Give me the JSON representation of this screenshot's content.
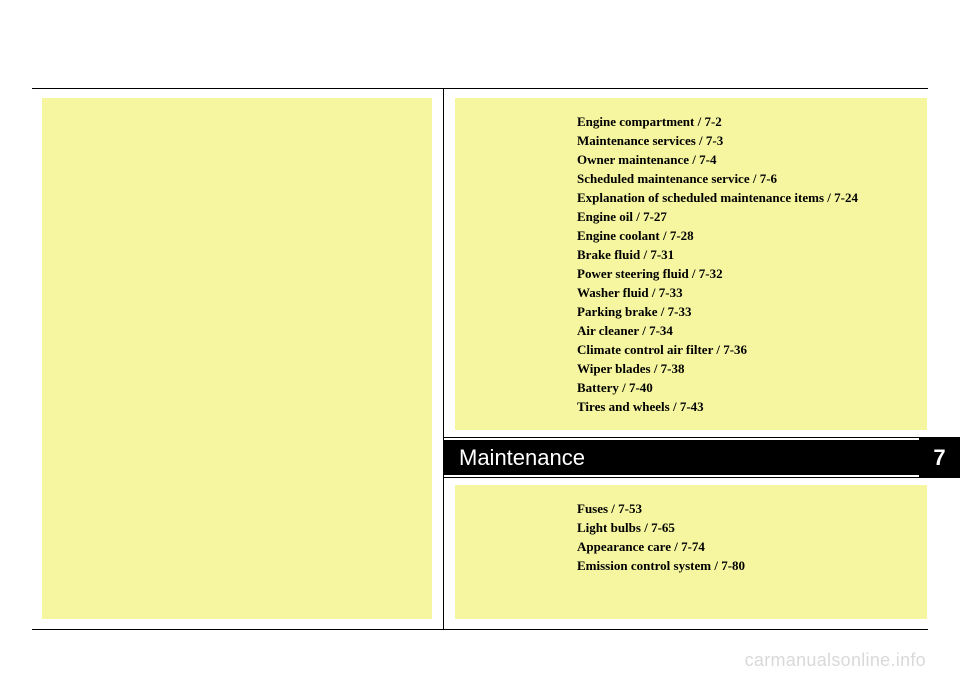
{
  "colors": {
    "page_bg": "#ffffff",
    "highlight_bg": "#f6f6a1",
    "text": "#000000",
    "title_bg": "#000000",
    "title_text": "#ffffff",
    "watermark": "#d9d9d9"
  },
  "typography": {
    "toc_fontsize": 13,
    "toc_fontweight": "bold",
    "toc_family": "Times New Roman",
    "title_fontsize": 22,
    "title_family": "Arial",
    "chapter_fontsize": 22,
    "chapter_fontweight": "bold"
  },
  "title": "Maintenance",
  "chapter_number": "7",
  "toc_upper": [
    "Engine compartment / 7-2",
    "Maintenance services / 7-3",
    "Owner maintenance / 7-4",
    "Scheduled maintenance service / 7-6",
    "Explanation of scheduled maintenance items / 7-24",
    "Engine oil / 7-27",
    "Engine coolant / 7-28",
    "Brake fluid / 7-31",
    "Power steering fluid / 7-32",
    "Washer fluid / 7-33",
    "Parking brake  / 7-33",
    "Air cleaner / 7-34",
    "Climate control air filter / 7-36",
    "Wiper blades / 7-38",
    "Battery / 7-40",
    "Tires and wheels / 7-43"
  ],
  "toc_lower": [
    "Fuses / 7-53",
    "Light bulbs / 7-65",
    "Appearance care / 7-74",
    "Emission control system / 7-80"
  ],
  "watermark": "carmanualsonline.info"
}
